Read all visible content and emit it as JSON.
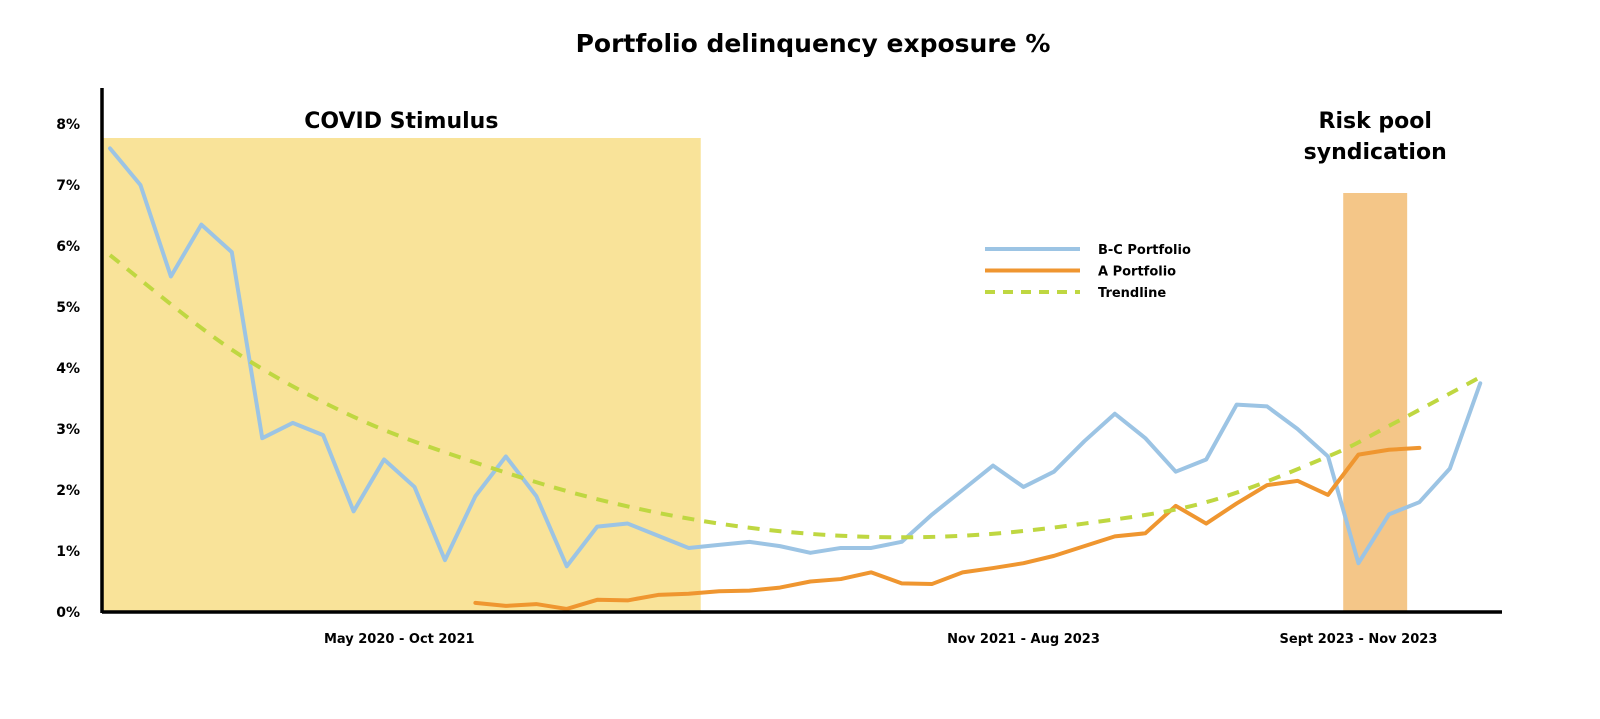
{
  "chart_data": {
    "type": "line",
    "title": "Portfolio delinquency exposure %",
    "ylim": [
      0,
      8
    ],
    "y_ticks": [
      "0%",
      "1%",
      "2%",
      "3%",
      "4%",
      "5%",
      "6%",
      "7%",
      "8%"
    ],
    "x_labels": [
      {
        "label": "May 2020 - Oct 2021",
        "x": 9.5
      },
      {
        "label": "Nov 2021 - Aug 2023",
        "x": 30
      },
      {
        "label": "Sept 2023 - Nov 2023",
        "x": 41
      }
    ],
    "xlim": [
      -0.3,
      46
    ],
    "grid": false,
    "legend_position": "center-right",
    "bands": [
      {
        "label": "COVID Stimulus",
        "x_start": -0.3,
        "x_end": 19.4,
        "color": "#f9e399"
      },
      {
        "label": "Risk pool syndication",
        "x_start": 40.5,
        "x_end": 42.6,
        "color": "#f4c688"
      }
    ],
    "series": [
      {
        "name": "B-C Portfolio",
        "color": "#9cc4e4",
        "style": "solid",
        "x": [
          0,
          1,
          2,
          3,
          4,
          5,
          6,
          7,
          8,
          9,
          10,
          11,
          12,
          13,
          14,
          15,
          16,
          17,
          18,
          19,
          20,
          21,
          22,
          23,
          24,
          25,
          26,
          27,
          28,
          29,
          30,
          31,
          32,
          33,
          34,
          35,
          36,
          37,
          38,
          39,
          40,
          41,
          42,
          43,
          44,
          45
        ],
        "values": [
          7.6,
          7.0,
          5.5,
          6.35,
          5.9,
          2.85,
          3.1,
          2.9,
          1.65,
          2.5,
          2.05,
          0.85,
          1.9,
          2.55,
          1.9,
          0.75,
          1.4,
          1.45,
          1.25,
          1.05,
          1.1,
          1.15,
          1.08,
          0.97,
          1.05,
          1.05,
          1.15,
          1.6,
          2.0,
          2.4,
          2.05,
          2.3,
          2.8,
          3.25,
          2.85,
          2.3,
          2.5,
          3.4,
          3.37,
          3.0,
          2.55,
          0.8,
          1.6,
          1.8,
          2.35,
          3.75
        ]
      },
      {
        "name": "A Portfolio",
        "color": "#ef9630",
        "style": "solid",
        "x": [
          12,
          13,
          14,
          15,
          16,
          17,
          18,
          19,
          20,
          21,
          22,
          23,
          24,
          25,
          26,
          27,
          28,
          29,
          30,
          31,
          32,
          33,
          34,
          35,
          36,
          37,
          38,
          39,
          40,
          41,
          42,
          43
        ],
        "values": [
          0.15,
          0.1,
          0.13,
          0.05,
          0.2,
          0.19,
          0.28,
          0.3,
          0.34,
          0.35,
          0.4,
          0.5,
          0.54,
          0.65,
          0.47,
          0.46,
          0.65,
          0.72,
          0.8,
          0.92,
          1.08,
          1.24,
          1.29,
          1.74,
          1.45,
          1.78,
          2.08,
          2.15,
          1.92,
          2.58,
          2.66,
          2.69
        ]
      },
      {
        "name": "Trendline",
        "color": "#bfd741",
        "style": "dashed",
        "x": [
          0,
          45
        ],
        "curve": "quadratic",
        "values_at": [
          [
            0,
            5.85
          ],
          [
            4,
            4.3
          ],
          [
            8,
            3.2
          ],
          [
            12,
            2.45
          ],
          [
            16,
            1.85
          ],
          [
            20,
            1.45
          ],
          [
            24,
            1.25
          ],
          [
            28,
            1.25
          ],
          [
            32,
            1.45
          ],
          [
            36,
            1.8
          ],
          [
            40,
            2.55
          ],
          [
            42,
            3.05
          ],
          [
            45,
            3.85
          ]
        ]
      }
    ]
  }
}
